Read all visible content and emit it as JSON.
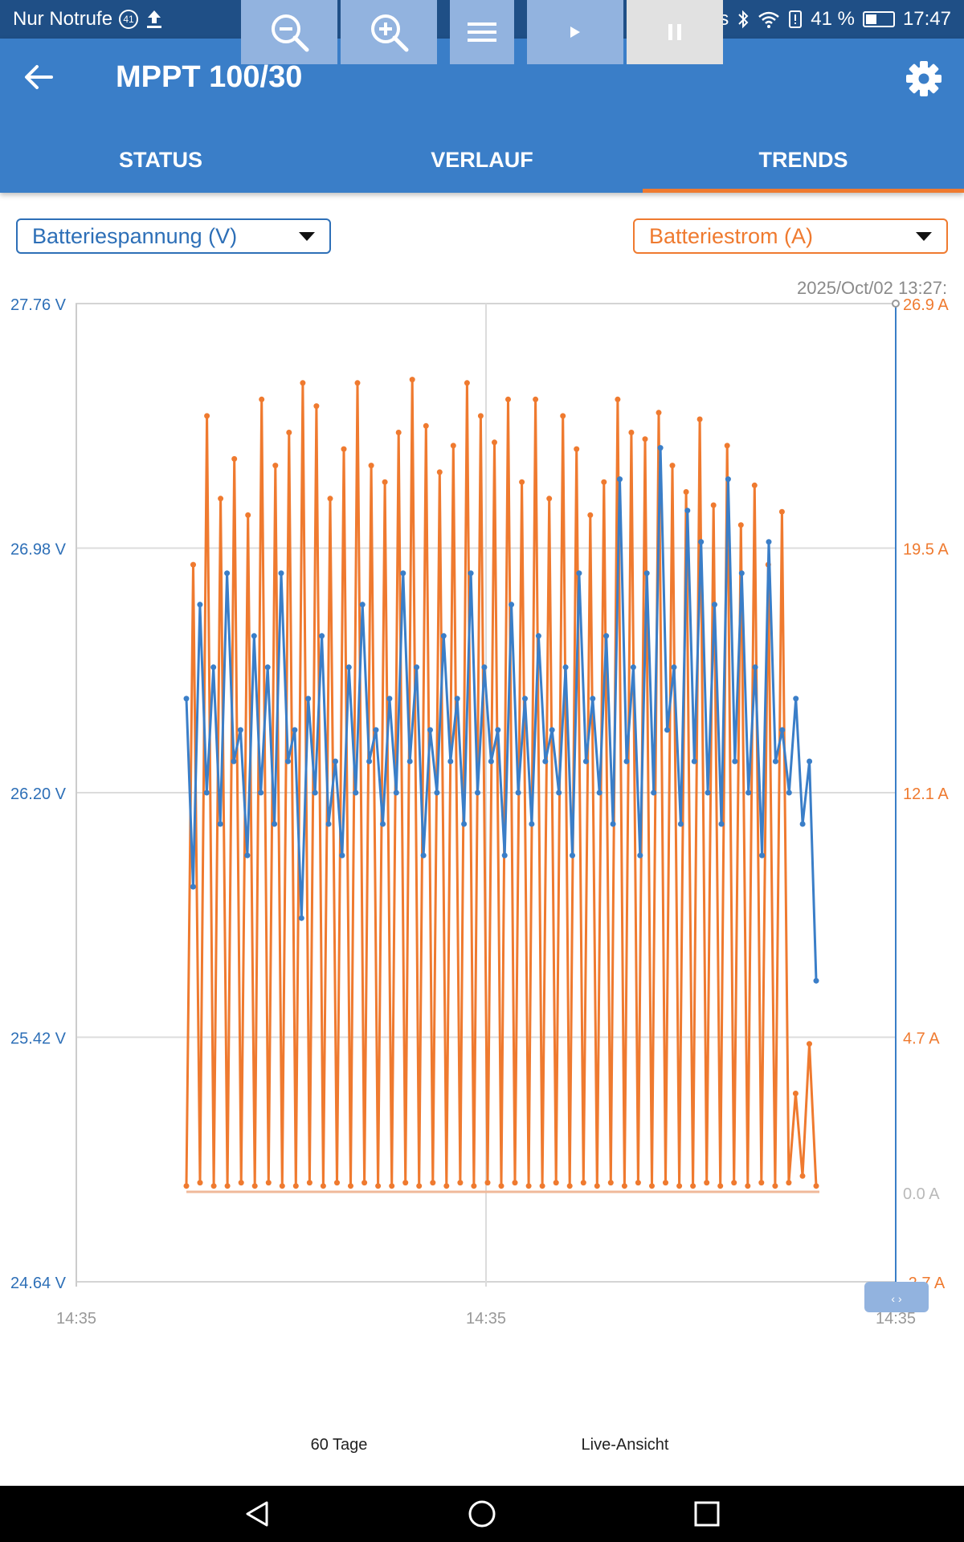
{
  "status_bar": {
    "carrier": "Nur Notrufe",
    "notification_count": "41",
    "network_speed": "0K/s",
    "battery_percent": "41 %",
    "battery_level": 0.41,
    "time": "17:47"
  },
  "app_bar": {
    "title": "MPPT 100/30",
    "tabs": [
      {
        "label": "STATUS",
        "active": false
      },
      {
        "label": "VERLAUF",
        "active": false
      },
      {
        "label": "TRENDS",
        "active": true
      }
    ]
  },
  "selectors": {
    "left": "Batteriespannung (V)",
    "right": "Batteriestrom (A)"
  },
  "chart_data": {
    "type": "line",
    "timestamp_label": "2025/Oct/02 13:27:",
    "x_tick_labels": [
      "14:35",
      "14:35",
      "14:35"
    ],
    "left_axis": {
      "tick_labels": [
        "27.76 V",
        "26.98 V",
        "26.20 V",
        "25.42 V",
        "24.64 V"
      ],
      "ylim": [
        24.64,
        27.76
      ],
      "color": "#2d6fb7"
    },
    "right_axis": {
      "tick_labels": [
        "26.9 A",
        "19.5 A",
        "12.1 A",
        "4.7 A",
        "0.0 A",
        "-2.7 A"
      ],
      "ylim": [
        -2.7,
        26.9
      ],
      "color": "#ef7a2f"
    },
    "series": [
      {
        "axis": "left",
        "color": "#3a7ec8",
        "values": [
          26.5,
          25.9,
          26.8,
          26.2,
          26.6,
          26.1,
          26.9,
          26.3,
          26.4,
          26.0,
          26.7,
          26.2,
          26.6,
          26.1,
          26.9,
          26.3,
          26.4,
          25.8,
          26.5,
          26.2,
          26.7,
          26.1,
          26.3,
          26.0,
          26.6,
          26.2,
          26.8,
          26.3,
          26.4,
          26.1,
          26.5,
          26.2,
          26.9,
          26.3,
          26.6,
          26.0,
          26.4,
          26.2,
          26.7,
          26.3,
          26.5,
          26.1,
          26.9,
          26.2,
          26.6,
          26.3,
          26.4,
          26.0,
          26.8,
          26.2,
          26.5,
          26.1,
          26.7,
          26.3,
          26.4,
          26.2,
          26.6,
          26.0,
          26.9,
          26.3,
          26.5,
          26.2,
          26.7,
          26.1,
          27.2,
          26.3,
          26.6,
          26.0,
          26.9,
          26.2,
          27.3,
          26.4,
          26.6,
          26.1,
          27.1,
          26.3,
          27.0,
          26.2,
          26.8,
          26.1,
          27.2,
          26.3,
          26.9,
          26.2,
          26.6,
          26.0,
          27.0,
          26.3,
          26.4,
          26.2,
          26.5,
          26.1,
          26.3,
          25.6
        ]
      },
      {
        "axis": "right",
        "color": "#ef7a2f",
        "values": [
          0.2,
          19.0,
          0.3,
          23.5,
          0.2,
          21.0,
          0.2,
          22.2,
          0.3,
          20.5,
          0.2,
          24.0,
          0.3,
          22.0,
          0.2,
          23.0,
          0.2,
          24.5,
          0.3,
          23.8,
          0.2,
          21.0,
          0.3,
          22.5,
          0.2,
          24.5,
          0.3,
          22.0,
          0.2,
          21.5,
          0.2,
          23.0,
          0.3,
          24.6,
          0.2,
          23.2,
          0.3,
          21.8,
          0.2,
          22.6,
          0.3,
          24.5,
          0.2,
          23.5,
          0.3,
          22.7,
          0.2,
          24.0,
          0.3,
          21.5,
          0.2,
          24.0,
          0.2,
          21.0,
          0.3,
          23.5,
          0.2,
          22.5,
          0.3,
          20.5,
          0.2,
          21.5,
          0.3,
          24.0,
          0.2,
          23.0,
          0.3,
          22.8,
          0.2,
          23.6,
          0.3,
          22.0,
          0.2,
          21.2,
          0.2,
          23.4,
          0.3,
          20.8,
          0.2,
          22.6,
          0.3,
          20.2,
          0.2,
          21.4,
          0.3,
          19.0,
          0.2,
          20.6,
          0.3,
          3.0,
          0.5,
          4.5,
          0.2
        ]
      }
    ]
  },
  "toolbar": {
    "zoom_label": "60 Tage",
    "live_label": "Live-Ansicht"
  }
}
